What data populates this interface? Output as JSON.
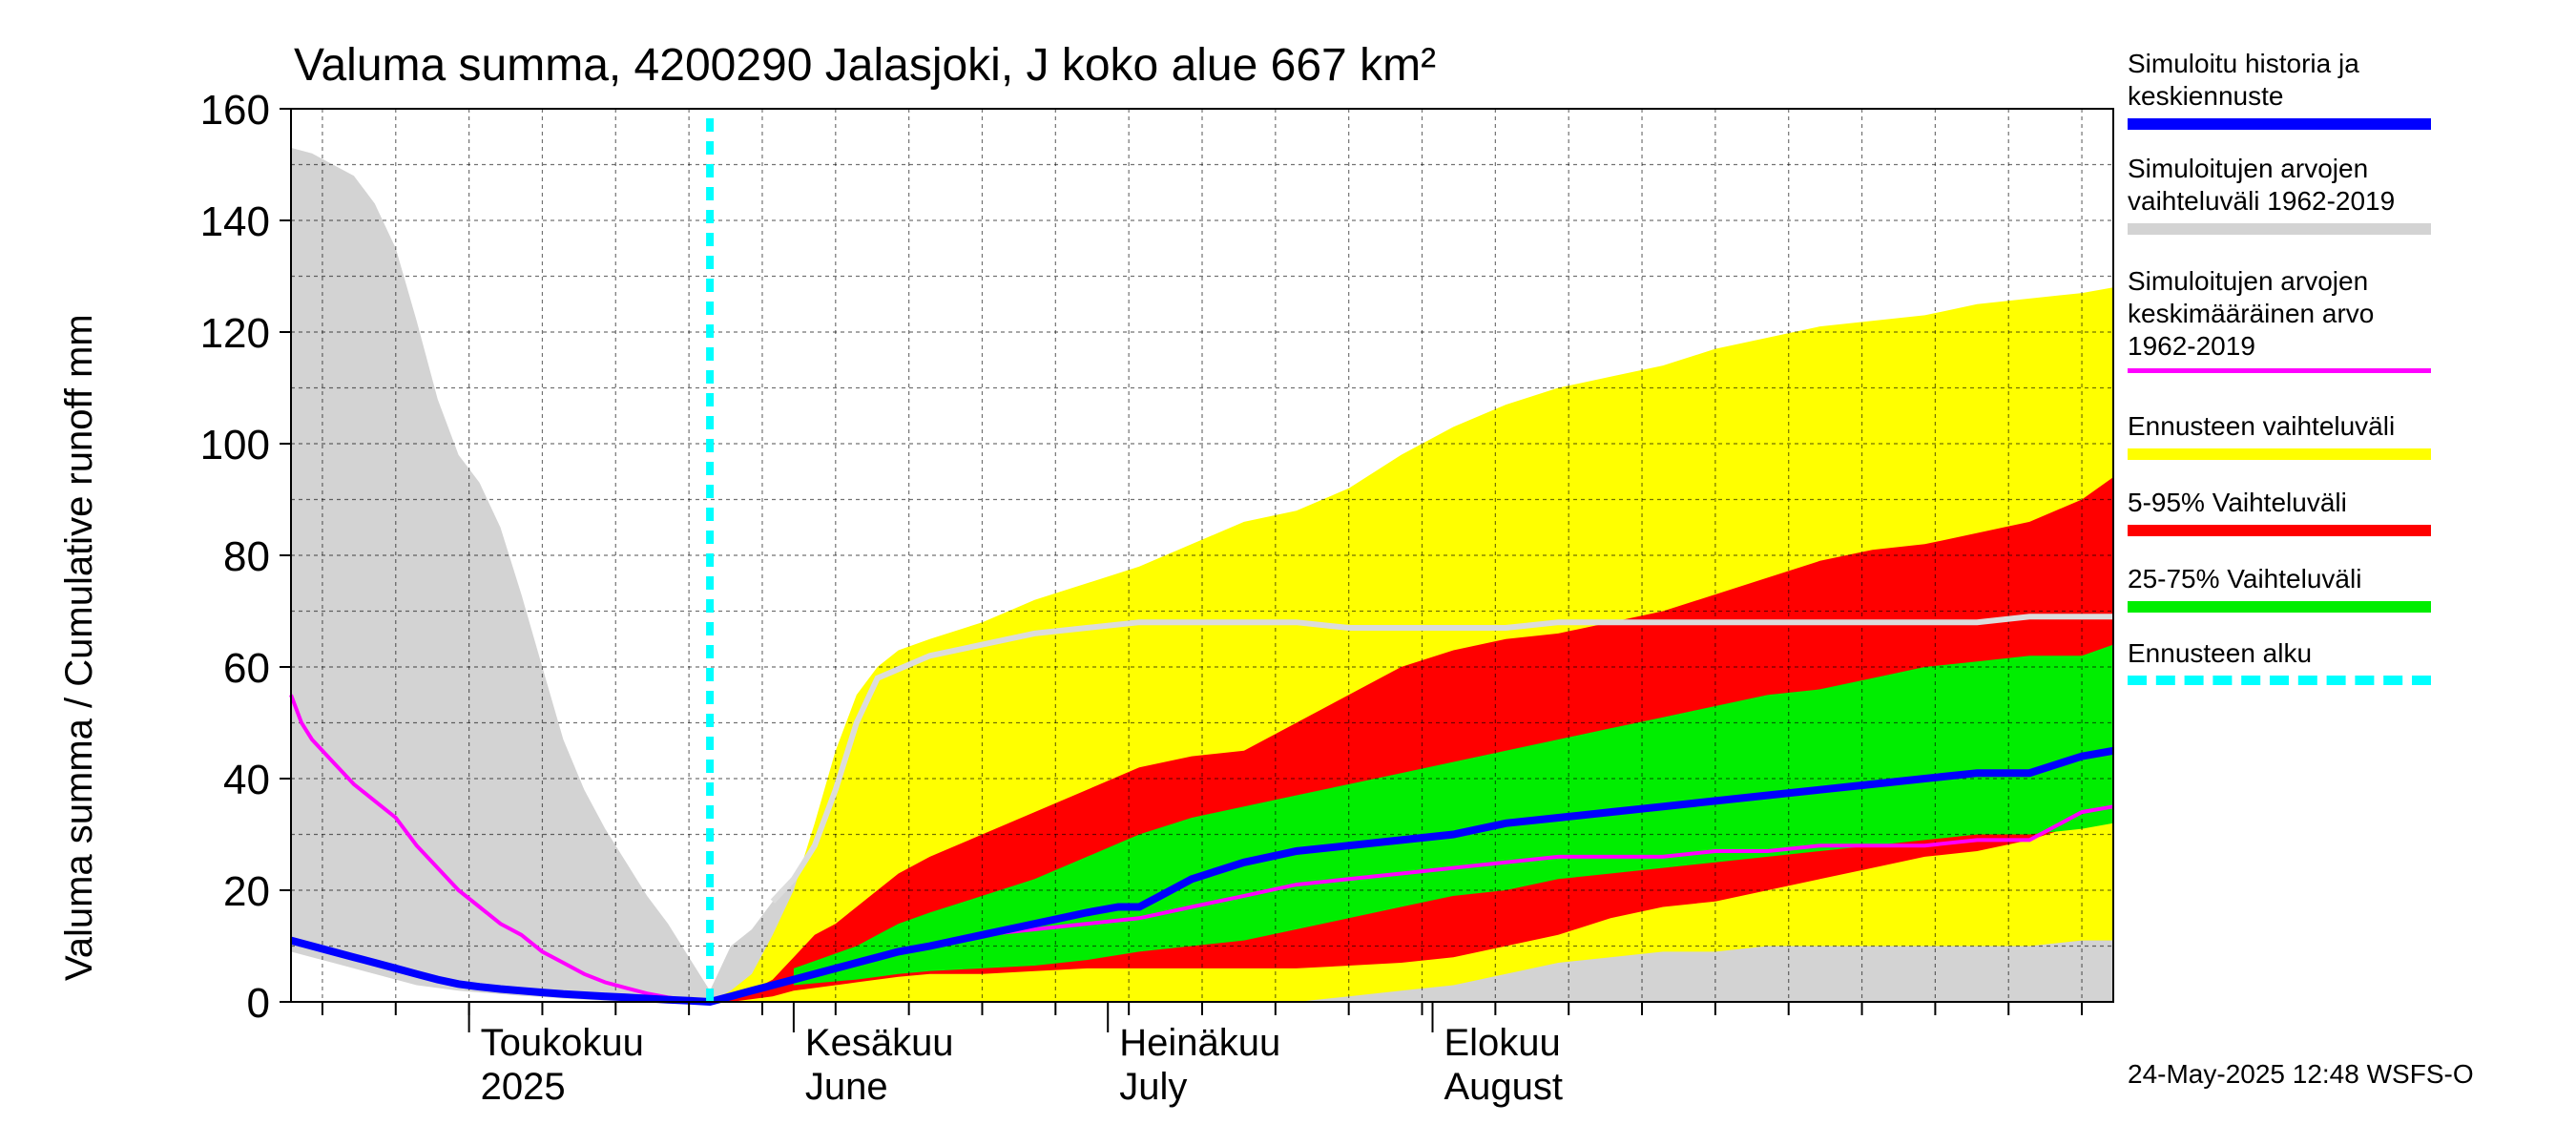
{
  "title": "Valuma summa, 4200290 Jalasjoki, J koko alue 667 km²",
  "timestamp": "24-May-2025 12:48 WSFS-O",
  "colors": {
    "history_range": "#d3d3d3",
    "forecast_range": "#ffff00",
    "p5_95": "#ff0000",
    "p25_75": "#00ee00",
    "median": "#0000ff",
    "mean_hist": "#ff00ff",
    "forecast_start": "#00ffff",
    "grid_dark": "#000000"
  },
  "legend": [
    {
      "label": "Simuloitu historia ja\nkeskiennuste",
      "color": "#0000ff",
      "style": "solid"
    },
    {
      "label": "Simuloitujen arvojen\nvaihteluväli 1962-2019",
      "color": "#d3d3d3",
      "style": "solid"
    },
    {
      "label": "Simuloitujen arvojen\nkeskimääräinen arvo\n   1962-2019",
      "color": "#ff00ff",
      "style": "thin"
    },
    {
      "label": "Ennusteen vaihteluväli",
      "color": "#ffff00",
      "style": "solid"
    },
    {
      "label": "5-95% Vaihteluväli",
      "color": "#ff0000",
      "style": "solid"
    },
    {
      "label": "25-75% Vaihteluväli",
      "color": "#00ee00",
      "style": "solid"
    },
    {
      "label": "Ennusteen alku",
      "color": "#00ffff",
      "style": "dashed"
    }
  ],
  "chart_data": {
    "type": "area",
    "title": "Valuma summa, 4200290 Jalasjoki, J koko alue 667 km²",
    "ylabel": "Valuma summa / Cumulative runoff    mm",
    "ylim": [
      0,
      160
    ],
    "yticks": [
      0,
      20,
      40,
      60,
      80,
      100,
      120,
      140,
      160
    ],
    "x_unit": "day of year 2025",
    "xlim": [
      104,
      278
    ],
    "forecast_start": 144,
    "month_ticks": [
      {
        "x": 121,
        "line1": "Toukokuu",
        "line2": "2025"
      },
      {
        "x": 152,
        "line1": "Kesäkuu",
        "line2": "June"
      },
      {
        "x": 182,
        "line1": "Heinäkuu",
        "line2": "July"
      },
      {
        "x": 213,
        "line1": "Elokuu",
        "line2": "August"
      }
    ],
    "history_range": {
      "x": [
        104,
        106,
        108,
        110,
        112,
        114,
        116,
        118,
        120,
        122,
        124,
        126,
        128,
        130,
        132,
        134,
        136,
        138,
        140,
        142,
        144,
        146,
        148,
        150,
        152,
        154,
        156,
        158,
        160,
        165,
        170,
        175,
        180,
        185,
        190,
        195,
        200,
        205,
        210,
        215,
        220,
        225,
        230,
        235,
        240,
        245,
        250,
        255,
        260,
        265,
        270,
        275,
        278
      ],
      "upper": [
        153,
        152,
        150,
        148,
        143,
        135,
        122,
        108,
        98,
        93,
        85,
        73,
        60,
        47,
        38,
        31,
        25,
        19,
        14,
        8,
        2,
        10,
        13,
        18,
        22,
        28,
        38,
        50,
        58,
        62,
        64,
        66,
        67,
        68,
        68,
        68,
        68,
        67,
        67,
        67,
        67,
        68,
        68,
        68,
        68,
        68,
        68,
        68,
        68,
        68,
        69,
        69,
        69
      ],
      "lower": [
        9,
        8,
        7,
        6,
        5,
        4,
        3,
        2.5,
        2,
        1.7,
        1.4,
        1.1,
        0.9,
        0.6,
        0.4,
        0.2,
        0.1,
        0,
        0,
        0,
        0,
        0,
        0,
        0,
        0,
        0,
        0,
        0,
        0,
        0,
        0,
        0,
        0,
        0,
        0,
        0,
        0,
        0,
        0,
        0,
        0,
        0,
        0,
        0,
        0,
        0,
        0,
        0,
        0,
        0,
        0,
        0,
        0
      ]
    },
    "mean_history": {
      "x": [
        104,
        105,
        106,
        108,
        110,
        112,
        114,
        116,
        118,
        120,
        122,
        124,
        126,
        128,
        130,
        132,
        134,
        136,
        138,
        140,
        142,
        144,
        146,
        148,
        150,
        152,
        154,
        156,
        158,
        160,
        162,
        165,
        170,
        175,
        180,
        185,
        190,
        195,
        200,
        205,
        210,
        215,
        220,
        225,
        230,
        235,
        240,
        245,
        250,
        255,
        260,
        265,
        270,
        275,
        278
      ],
      "y": [
        55,
        50,
        47,
        43,
        39,
        36,
        33,
        28,
        24,
        20,
        17,
        14,
        12,
        9,
        7,
        5,
        3.5,
        2.5,
        1.5,
        0.8,
        0.3,
        0,
        1,
        2,
        3,
        4,
        5,
        6,
        7,
        8,
        9,
        10,
        12,
        13,
        14,
        15,
        17,
        19,
        21,
        22,
        23,
        24,
        25,
        26,
        26,
        26,
        27,
        27,
        28,
        28,
        28,
        29,
        29,
        34,
        35
      ]
    },
    "median": {
      "x": [
        104,
        106,
        108,
        110,
        112,
        114,
        116,
        118,
        120,
        122,
        124,
        126,
        128,
        130,
        132,
        134,
        136,
        138,
        140,
        142,
        144,
        146,
        148,
        150,
        152,
        154,
        156,
        158,
        160,
        162,
        165,
        170,
        175,
        180,
        183,
        185,
        187,
        190,
        195,
        200,
        205,
        210,
        215,
        220,
        225,
        230,
        235,
        240,
        245,
        250,
        255,
        260,
        265,
        270,
        275,
        278
      ],
      "y": [
        11,
        10,
        9,
        8,
        7,
        6,
        5,
        4,
        3.2,
        2.7,
        2.3,
        2.0,
        1.7,
        1.4,
        1.2,
        1.0,
        0.8,
        0.6,
        0.4,
        0.2,
        0,
        1,
        2,
        3,
        4,
        5,
        6,
        7,
        8,
        9,
        10,
        12,
        14,
        16,
        17,
        17,
        19,
        22,
        25,
        27,
        28,
        29,
        30,
        32,
        33,
        34,
        35,
        36,
        37,
        38,
        39,
        40,
        41,
        41,
        44,
        45
      ]
    },
    "forecast_range": {
      "x": [
        144,
        146,
        148,
        150,
        152,
        154,
        156,
        158,
        160,
        162,
        165,
        170,
        175,
        180,
        185,
        190,
        195,
        200,
        205,
        210,
        215,
        220,
        225,
        230,
        235,
        240,
        245,
        250,
        255,
        260,
        265,
        270,
        275,
        278
      ],
      "upper": [
        0,
        2,
        5,
        12,
        20,
        32,
        45,
        55,
        60,
        63,
        65,
        68,
        72,
        75,
        78,
        82,
        86,
        88,
        92,
        98,
        103,
        107,
        110,
        112,
        114,
        117,
        119,
        121,
        122,
        123,
        125,
        126,
        127,
        128
      ],
      "lower": [
        0,
        0,
        0,
        0,
        0,
        0,
        0,
        0,
        0,
        0,
        0,
        0,
        0,
        0,
        0,
        0,
        0,
        0,
        1,
        2,
        3,
        5,
        7,
        8,
        9,
        9,
        10,
        10,
        10,
        10,
        10,
        10,
        11,
        11
      ]
    },
    "p5_95": {
      "x": [
        144,
        146,
        148,
        150,
        152,
        154,
        156,
        158,
        160,
        162,
        165,
        170,
        175,
        180,
        185,
        190,
        195,
        200,
        205,
        210,
        215,
        220,
        225,
        230,
        235,
        240,
        245,
        250,
        255,
        260,
        265,
        270,
        275,
        278
      ],
      "upper": [
        0,
        1,
        2,
        4,
        8,
        12,
        14,
        17,
        20,
        23,
        26,
        30,
        34,
        38,
        42,
        44,
        45,
        50,
        55,
        60,
        63,
        65,
        66,
        68,
        70,
        73,
        76,
        79,
        81,
        82,
        84,
        86,
        90,
        94
      ],
      "lower": [
        0,
        0,
        0.5,
        1,
        2,
        2.5,
        3,
        3.5,
        4,
        4.5,
        5,
        5,
        5.5,
        6,
        6,
        6,
        6,
        6,
        6.5,
        7,
        8,
        10,
        12,
        15,
        17,
        18,
        20,
        22,
        24,
        26,
        27,
        29,
        32,
        33
      ]
    },
    "p25_75": {
      "x": [
        152,
        155,
        158,
        160,
        162,
        165,
        170,
        175,
        180,
        185,
        190,
        195,
        200,
        205,
        210,
        215,
        220,
        225,
        230,
        235,
        240,
        245,
        250,
        255,
        260,
        265,
        270,
        275,
        278
      ],
      "upper": [
        6,
        8,
        10,
        12,
        14,
        16,
        19,
        22,
        26,
        30,
        33,
        35,
        37,
        39,
        41,
        43,
        45,
        47,
        49,
        51,
        53,
        55,
        56,
        58,
        60,
        61,
        62,
        62,
        64
      ],
      "lower": [
        3,
        3.5,
        4,
        4.5,
        5,
        5.5,
        6,
        6.5,
        7.5,
        9,
        10,
        11,
        13,
        15,
        17,
        19,
        20,
        22,
        23,
        24,
        25,
        26,
        27,
        28,
        29,
        30,
        30,
        31,
        32
      ]
    }
  }
}
